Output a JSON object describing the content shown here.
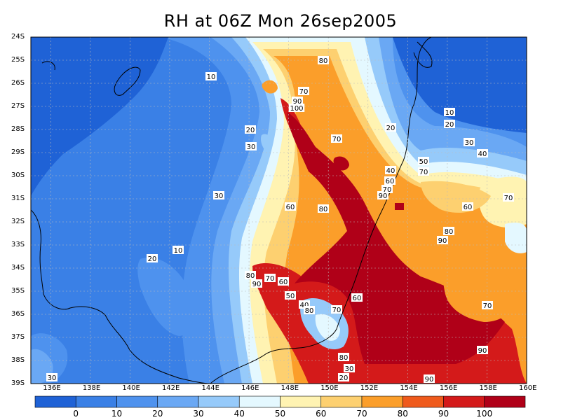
{
  "title": "RH at 06Z Mon 26sep2005",
  "lat_labels": [
    "24S",
    "25S",
    "26S",
    "27S",
    "28S",
    "29S",
    "30S",
    "31S",
    "32S",
    "33S",
    "34S",
    "35S",
    "36S",
    "37S",
    "38S",
    "39S"
  ],
  "lon_labels": [
    "136E",
    "138E",
    "140E",
    "142E",
    "144E",
    "146E",
    "148E",
    "150E",
    "152E",
    "154E",
    "156E",
    "158E",
    "160E"
  ],
  "colorbar": {
    "colors": [
      "#1f62d6",
      "#3a80e6",
      "#4e92ee",
      "#6aa8f4",
      "#96cafa",
      "#e4f8ff",
      "#fff3b2",
      "#fdd070",
      "#fb9e2a",
      "#ef5a1c",
      "#d41a1a",
      "#b00018"
    ],
    "labels": [
      "0",
      "10",
      "20",
      "30",
      "40",
      "50",
      "60",
      "70",
      "80",
      "90",
      "100"
    ]
  },
  "contour_labels": [
    "10",
    "20",
    "30",
    "10",
    "20",
    "30",
    "20",
    "80",
    "70",
    "90",
    "100",
    "70",
    "10",
    "20",
    "30",
    "40",
    "50",
    "70",
    "40",
    "60",
    "80",
    "90",
    "70",
    "60",
    "70",
    "60",
    "80",
    "90",
    "80",
    "70",
    "60",
    "50",
    "40",
    "80",
    "60",
    "70",
    "90",
    "70",
    "90",
    "80",
    "90",
    "30",
    "20",
    "30"
  ]
}
